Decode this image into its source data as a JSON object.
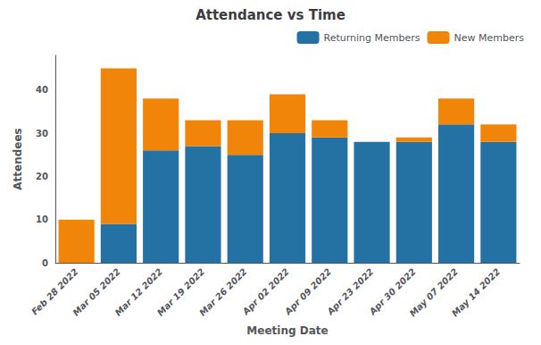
{
  "chart_data": {
    "type": "bar",
    "title": "Attendance vs Time",
    "xlabel": "Meeting Date",
    "ylabel": "Attendees",
    "categories": [
      "Feb 28 2022",
      "Mar 05 2022",
      "Mar 12 2022",
      "Mar 19 2022",
      "Mar 26 2022",
      "Apr 02 2022",
      "Apr 09 2022",
      "Apr 23 2022",
      "Apr 30 2022",
      "May 07 2022",
      "May 14 2022"
    ],
    "series": [
      {
        "name": "Returning Members",
        "color": "#2472a4",
        "values": [
          0,
          9,
          26,
          27,
          25,
          30,
          29,
          28,
          28,
          32,
          28
        ]
      },
      {
        "name": "New Members",
        "color": "#f0850a",
        "values": [
          10,
          36,
          12,
          6,
          8,
          9,
          4,
          0,
          1,
          6,
          4
        ]
      }
    ],
    "stacked": true,
    "ylim": [
      0,
      48
    ],
    "yticks": [
      0,
      10,
      20,
      30,
      40
    ],
    "grid": false,
    "legend": "upper right"
  }
}
